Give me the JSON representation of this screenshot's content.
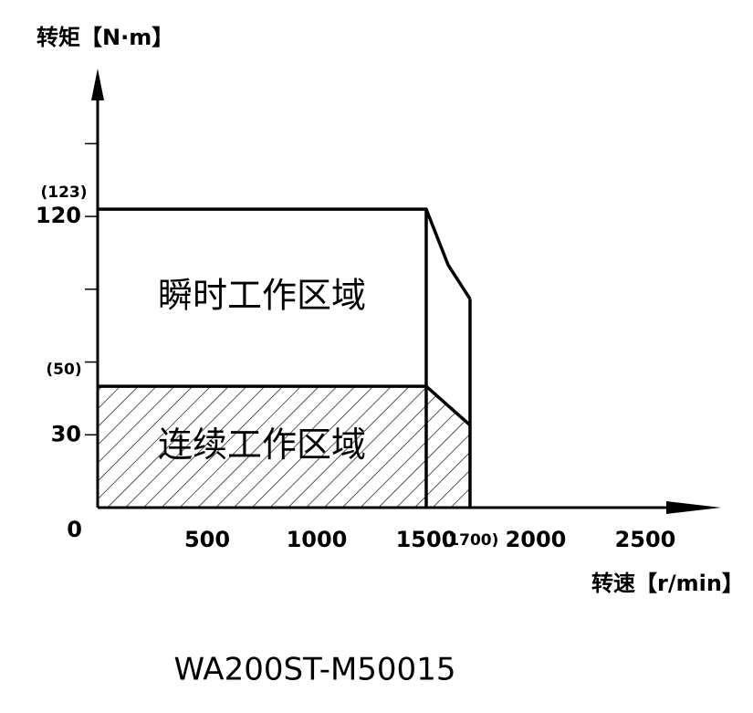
{
  "chart_data": {
    "type": "area",
    "y_axis_label": "转矩【N·m】",
    "x_axis_label": "转速【r/min】",
    "caption": "WA200ST-M50015",
    "x": [
      0,
      1500,
      1600,
      1700
    ],
    "series": [
      {
        "name": "瞬时工作区域",
        "color": "#000000",
        "values": [
          123,
          123,
          100,
          86
        ]
      },
      {
        "name": "连续工作区域",
        "color": "#000000",
        "values": [
          50,
          50,
          42,
          34
        ],
        "hatched": true
      }
    ],
    "xlim": [
      0,
      2846
    ],
    "ylim": [
      0,
      181
    ],
    "xticks": [
      500,
      1000,
      1500,
      {
        "value": 1700,
        "label": "(1700)"
      },
      2000,
      2500
    ],
    "yticks": [
      0,
      30,
      120
    ],
    "yminor_ticks": [
      60,
      90,
      150
    ],
    "annotations": [
      {
        "text": "(123)",
        "value": 123
      },
      {
        "text": "(50)",
        "value": 50
      }
    ]
  }
}
